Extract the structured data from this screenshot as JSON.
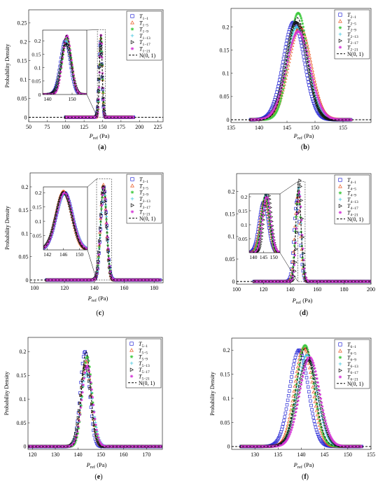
{
  "figure": {
    "type": "multi-panel probability density figure"
  },
  "colors": {
    "series": [
      "#2b2bd6",
      "#e8531c",
      "#3ec93e",
      "#46c8e0",
      "#111111",
      "#d437d6"
    ],
    "normal": "#111111",
    "axis": "#000000"
  },
  "chart_data": [
    {
      "id": "a",
      "type": "scatter",
      "panel_label": "(a)",
      "xlabel": "P_ref (Pa)",
      "ylabel": "Probability Density",
      "xlim": [
        50,
        232
      ],
      "ylim": [
        -0.012,
        0.285
      ],
      "xticks": [
        "50",
        "75",
        "100",
        "125",
        "150",
        "175",
        "200",
        "225"
      ],
      "xtick_values": [
        50,
        75,
        100,
        125,
        150,
        175,
        200,
        225
      ],
      "yticks": [
        "0",
        "0.05",
        "0.1",
        "0.15",
        "0.2",
        "0.25"
      ],
      "ytick_values": [
        0,
        0.05,
        0.1,
        0.15,
        0.2,
        0.25
      ],
      "legend": {
        "position": "top-right",
        "entries": [
          "T1-1",
          "T1-5",
          "T1-9",
          "T1-13",
          "T1-17",
          "T1-21",
          "N(0, 1)"
        ]
      },
      "series": [
        {
          "name": "T1-1",
          "mu": 147.2,
          "sigma": 2.0,
          "peak": 0.2
        },
        {
          "name": "T1-5",
          "mu": 147.8,
          "sigma": 1.9,
          "peak": 0.21
        },
        {
          "name": "T1-9",
          "mu": 147.9,
          "sigma": 1.9,
          "peak": 0.21
        },
        {
          "name": "T1-13",
          "mu": 147.5,
          "sigma": 2.0,
          "peak": 0.2
        },
        {
          "name": "T1-17",
          "mu": 147.6,
          "sigma": 2.1,
          "peak": 0.19
        },
        {
          "name": "T1-21",
          "mu": 147.9,
          "sigma": 1.8,
          "peak": 0.22
        }
      ],
      "normal_fit": {
        "mu": 147.7,
        "sigma": 1.8,
        "peak": 0.22
      },
      "support": [
        100,
        192
      ],
      "inset": {
        "xlim": [
          138,
          156
        ],
        "ylim": [
          0,
          0.24
        ],
        "xticks": [
          "140",
          "150"
        ],
        "xtick_values": [
          140,
          150
        ],
        "yticks": [
          "0",
          "0.05",
          "0.1",
          "0.15",
          "0.2"
        ],
        "ytick_values": [
          0,
          0.05,
          0.1,
          0.15,
          0.2
        ]
      }
    },
    {
      "id": "b",
      "type": "scatter",
      "panel_label": "(b)",
      "xlabel": "P_ref (Pa)",
      "ylabel": "",
      "xlim": [
        135,
        160
      ],
      "ylim": [
        -0.006,
        0.24
      ],
      "xticks": [
        "135",
        "140",
        "145",
        "150",
        "155"
      ],
      "xtick_values": [
        135,
        140,
        145,
        150,
        155
      ],
      "yticks": [
        "0",
        "0.05",
        "0.1",
        "0.15",
        "0.2"
      ],
      "ytick_values": [
        0,
        0.05,
        0.1,
        0.15,
        0.2
      ],
      "legend": {
        "position": "top-right",
        "entries": [
          "T2-1",
          "T2-5",
          "T2-9",
          "T2-13",
          "T2-17",
          "T2-21",
          "N(0, 1)"
        ]
      },
      "series": [
        {
          "name": "T2-1",
          "mu": 146.2,
          "sigma": 1.9,
          "peak": 0.21
        },
        {
          "name": "T2-5",
          "mu": 147.3,
          "sigma": 2.0,
          "peak": 0.2
        },
        {
          "name": "T2-9",
          "mu": 147.0,
          "sigma": 1.7,
          "peak": 0.23
        },
        {
          "name": "T2-13",
          "mu": 146.8,
          "sigma": 2.0,
          "peak": 0.2
        },
        {
          "name": "T2-17",
          "mu": 146.7,
          "sigma": 1.9,
          "peak": 0.21
        },
        {
          "name": "T2-21",
          "mu": 147.0,
          "sigma": 2.1,
          "peak": 0.19
        }
      ],
      "normal_fit": {
        "mu": 146.8,
        "sigma": 1.8,
        "peak": 0.22
      },
      "support": [
        138.5,
        156.5
      ]
    },
    {
      "id": "c",
      "type": "scatter",
      "panel_label": "(c)",
      "xlabel": "P_ref (Pa)",
      "ylabel": "Probability Density",
      "xlim": [
        97,
        186
      ],
      "ylim": [
        -0.006,
        0.23
      ],
      "xticks": [
        "100",
        "120",
        "140",
        "160",
        "180"
      ],
      "xtick_values": [
        100,
        120,
        140,
        160,
        180
      ],
      "yticks": [
        "0",
        "0.05",
        "0.1",
        "0.15",
        "0.2"
      ],
      "ytick_values": [
        0,
        0.05,
        0.1,
        0.15,
        0.2
      ],
      "legend": {
        "position": "top-right",
        "entries": [
          "T3-1",
          "T3-5",
          "T3-9",
          "T3-13",
          "T3-17",
          "T3-21",
          "N(0, 1)"
        ]
      },
      "series": [
        {
          "name": "T3-1",
          "mu": 146.3,
          "sigma": 2.0,
          "peak": 0.2
        },
        {
          "name": "T3-5",
          "mu": 146.0,
          "sigma": 1.95,
          "peak": 0.205
        },
        {
          "name": "T3-9",
          "mu": 146.2,
          "sigma": 2.0,
          "peak": 0.2
        },
        {
          "name": "T3-13",
          "mu": 146.4,
          "sigma": 2.05,
          "peak": 0.195
        },
        {
          "name": "T3-17",
          "mu": 146.1,
          "sigma": 2.0,
          "peak": 0.2
        },
        {
          "name": "T3-21",
          "mu": 146.3,
          "sigma": 2.0,
          "peak": 0.2
        }
      ],
      "normal_fit": {
        "mu": 146.2,
        "sigma": 1.95,
        "peak": 0.205
      },
      "support": [
        108,
        184
      ],
      "inset": {
        "xlim": [
          141,
          152
        ],
        "ylim": [
          0,
          0.22
        ],
        "xticks": [
          "142",
          "146",
          "150"
        ],
        "xtick_values": [
          142,
          146,
          150
        ],
        "yticks": [
          "0.05",
          "0.1",
          "0.15",
          "0.2"
        ],
        "ytick_values": [
          0.05,
          0.1,
          0.15,
          0.2
        ]
      }
    },
    {
      "id": "d",
      "type": "scatter",
      "panel_label": "(d)",
      "xlabel": "P_ref (Pa)",
      "ylabel": "",
      "xlim": [
        100,
        200
      ],
      "ylim": [
        -0.006,
        0.24
      ],
      "xticks": [
        "100",
        "120",
        "140",
        "160",
        "180",
        "200"
      ],
      "xtick_values": [
        100,
        120,
        140,
        160,
        180,
        200
      ],
      "yticks": [
        "0",
        "0.05",
        "0.1",
        "0.15",
        "0.2"
      ],
      "ytick_values": [
        0,
        0.05,
        0.1,
        0.15,
        0.2
      ],
      "legend": {
        "position": "top-right",
        "entries": [
          "T4-1",
          "T4-5",
          "T4-9",
          "T4-13",
          "T4-17",
          "T4-21",
          "N(0, 1)"
        ]
      },
      "series": [
        {
          "name": "T4-1",
          "mu": 145.0,
          "sigma": 2.2,
          "peak": 0.18
        },
        {
          "name": "T4-5",
          "mu": 145.5,
          "sigma": 2.1,
          "peak": 0.19
        },
        {
          "name": "T4-9",
          "mu": 145.8,
          "sigma": 2.0,
          "peak": 0.2
        },
        {
          "name": "T4-13",
          "mu": 146.2,
          "sigma": 1.9,
          "peak": 0.21
        },
        {
          "name": "T4-17",
          "mu": 147.0,
          "sigma": 1.75,
          "peak": 0.225
        },
        {
          "name": "T4-21",
          "mu": 146.5,
          "sigma": 2.0,
          "peak": 0.2
        }
      ],
      "normal_fit": {
        "mu": 146.0,
        "sigma": 1.9,
        "peak": 0.21
      },
      "support": [
        113,
        200
      ],
      "inset": {
        "xlim": [
          138,
          153
        ],
        "ylim": [
          0,
          0.21
        ],
        "xticks": [
          "140",
          "145",
          "150"
        ],
        "xtick_values": [
          140,
          145,
          150
        ],
        "yticks": [
          "0.05",
          "0.1",
          "0.15",
          "0.2"
        ],
        "ytick_values": [
          0.05,
          0.1,
          0.15,
          0.2
        ]
      }
    },
    {
      "id": "e",
      "type": "scatter",
      "panel_label": "(e)",
      "xlabel": "P_ref (Pa)",
      "ylabel": "Probability Density",
      "xlim": [
        118,
        177
      ],
      "ylim": [
        -0.006,
        0.23
      ],
      "xticks": [
        "120",
        "130",
        "140",
        "150",
        "160",
        "170"
      ],
      "xtick_values": [
        120,
        130,
        140,
        150,
        160,
        170
      ],
      "yticks": [
        "0",
        "0.05",
        "0.1",
        "0.15",
        "0.2"
      ],
      "ytick_values": [
        0,
        0.05,
        0.1,
        0.15,
        0.2
      ],
      "legend": {
        "position": "top-right",
        "entries": [
          "T5-1",
          "T5-5",
          "T5-9",
          "T5-13",
          "T5-17",
          "T5-21",
          "N(0, 1)"
        ]
      },
      "series": [
        {
          "name": "T5-1",
          "mu": 143.0,
          "sigma": 2.0,
          "peak": 0.2
        },
        {
          "name": "T5-5",
          "mu": 143.5,
          "sigma": 2.2,
          "peak": 0.18
        },
        {
          "name": "T5-9",
          "mu": 144.0,
          "sigma": 2.1,
          "peak": 0.19
        },
        {
          "name": "T5-13",
          "mu": 143.8,
          "sigma": 2.6,
          "peak": 0.155
        },
        {
          "name": "T5-17",
          "mu": 143.3,
          "sigma": 2.3,
          "peak": 0.17
        },
        {
          "name": "T5-21",
          "mu": 144.0,
          "sigma": 2.35,
          "peak": 0.17
        }
      ],
      "normal_fit": {
        "mu": 143.5,
        "sigma": 2.0,
        "peak": 0.2
      },
      "support": [
        118,
        177
      ]
    },
    {
      "id": "f",
      "type": "scatter",
      "panel_label": "(f)",
      "xlabel": "P_ref (Pa)",
      "ylabel": "Probability Density",
      "xlim": [
        125,
        155
      ],
      "ylim": [
        -0.006,
        0.225
      ],
      "xticks": [
        "130",
        "135",
        "140",
        "145",
        "150",
        "155"
      ],
      "xtick_values": [
        130,
        135,
        140,
        145,
        150,
        155
      ],
      "yticks": [
        "0",
        "0.05",
        "0.1",
        "0.15",
        "0.2"
      ],
      "ytick_values": [
        0,
        0.05,
        0.1,
        0.15,
        0.2
      ],
      "legend": {
        "position": "top-right",
        "entries": [
          "T6-1",
          "T6-5",
          "T6-9",
          "T6-13",
          "T6-17",
          "T6-21",
          "N(0, 1)"
        ]
      },
      "series": [
        {
          "name": "T6-1",
          "mu": 139.5,
          "sigma": 2.0,
          "peak": 0.2
        },
        {
          "name": "T6-5",
          "mu": 140.5,
          "sigma": 1.95,
          "peak": 0.205
        },
        {
          "name": "T6-9",
          "mu": 140.8,
          "sigma": 1.9,
          "peak": 0.21
        },
        {
          "name": "T6-13",
          "mu": 141.2,
          "sigma": 2.1,
          "peak": 0.19
        },
        {
          "name": "T6-17",
          "mu": 141.5,
          "sigma": 2.2,
          "peak": 0.18
        },
        {
          "name": "T6-21",
          "mu": 141.8,
          "sigma": 2.15,
          "peak": 0.185
        }
      ],
      "normal_fit": {
        "mu": 140.9,
        "sigma": 1.95,
        "peak": 0.205
      },
      "support": [
        127,
        153
      ]
    }
  ]
}
